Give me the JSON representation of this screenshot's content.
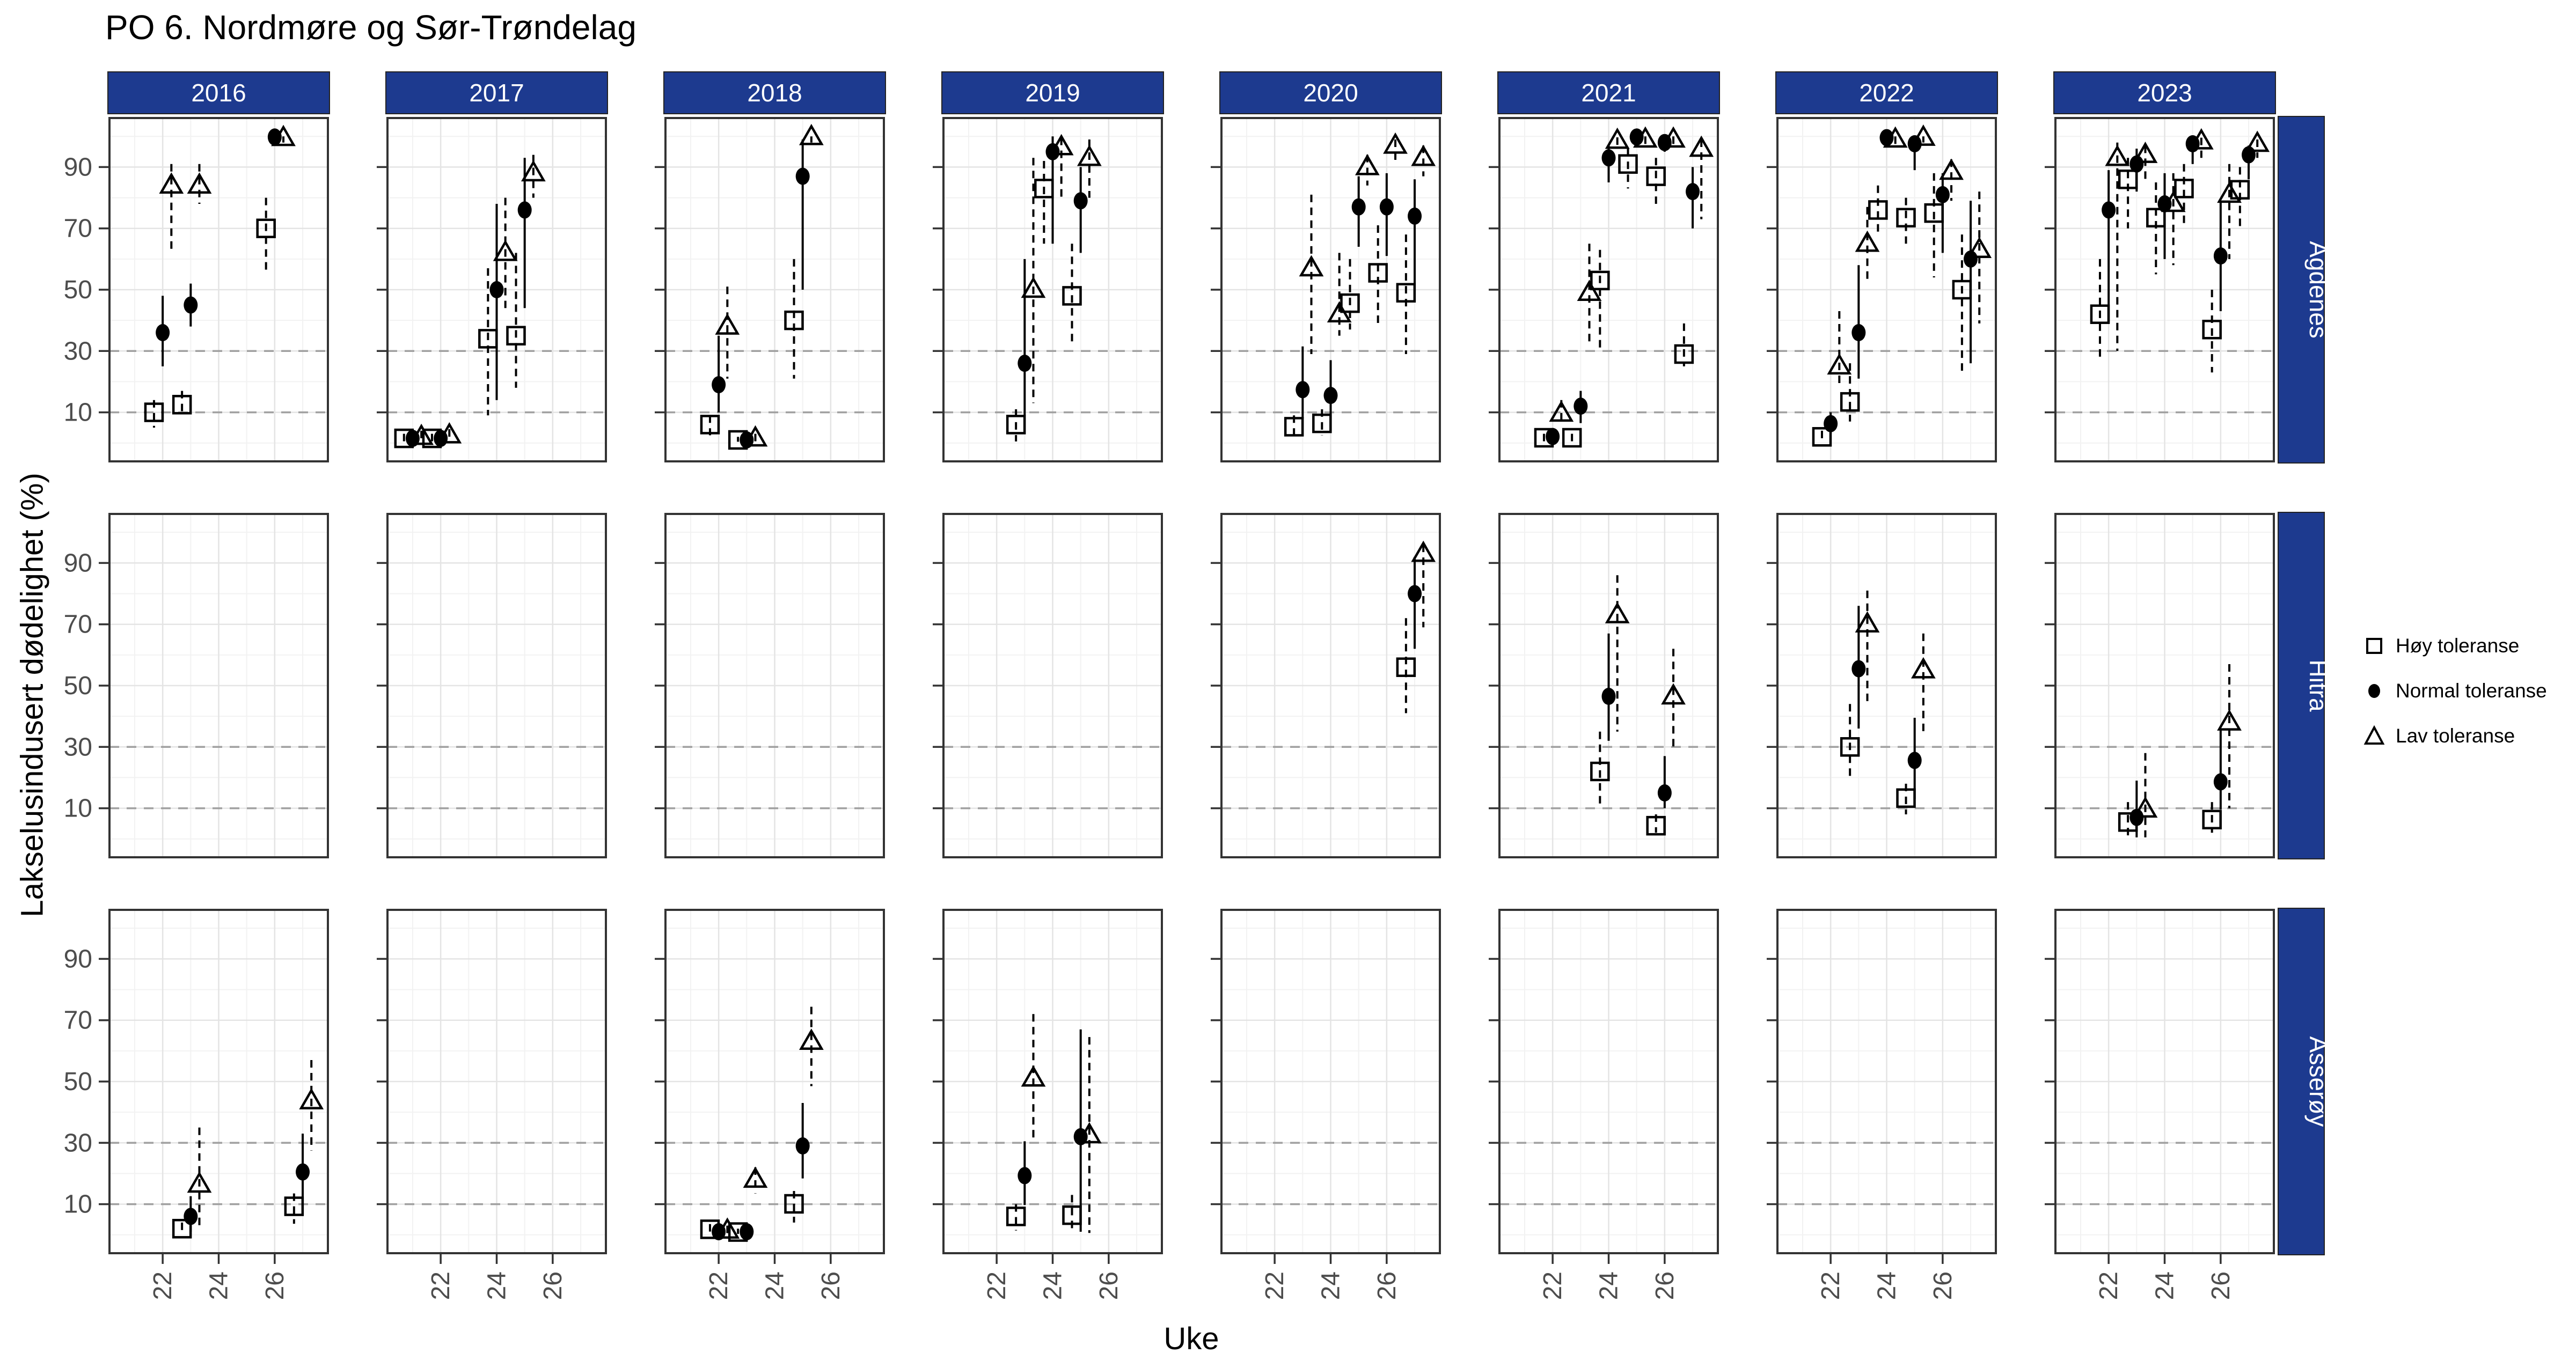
{
  "title": "PO 6. Nordmøre og Sør-Trøndelag",
  "axes": {
    "x_label": "Uke",
    "y_label": "Lakselusindusert dødelighet (%)",
    "x_ticks": [
      22,
      24,
      26
    ],
    "y_ticks": [
      10,
      30,
      50,
      70,
      90
    ],
    "x_domain": [
      20.1,
      27.9
    ],
    "y_domain": [
      -6,
      106
    ],
    "minor_x": [
      21,
      23,
      25,
      27
    ],
    "minor_y": [
      0,
      20,
      40,
      60,
      80,
      100
    ],
    "reference_lines": [
      10,
      30
    ]
  },
  "facets": {
    "years": [
      "2016",
      "2017",
      "2018",
      "2019",
      "2020",
      "2021",
      "2022",
      "2023"
    ],
    "areas": [
      "Agdenes",
      "Hitra",
      "Asserøy"
    ]
  },
  "legend": {
    "items": [
      {
        "label": "Høy toleranse",
        "marker": "square"
      },
      {
        "label": "Normal toleranse",
        "marker": "circle"
      },
      {
        "label": "Lav toleranse",
        "marker": "triangle"
      }
    ]
  },
  "colors": {
    "strip_bg": "#1d3a8f",
    "strip_text": "#ffffff",
    "axis_text": "#4d4d4d",
    "tick_mark": "#333333",
    "grid_major": "#e4e4e4",
    "grid_minor": "#f2f2f2",
    "ref_line": "#a0a0a0",
    "panel_border": "#333333",
    "panel_bg": "#ffffff",
    "mark": "#000000"
  },
  "chart_data": {
    "type": "scatter",
    "dodge": 0.31,
    "series": [
      {
        "key": "hoy",
        "label": "Høy toleranse",
        "marker": "square",
        "errorbar": "dashed"
      },
      {
        "key": "normal",
        "label": "Normal toleranse",
        "marker": "circle",
        "errorbar": "solid"
      },
      {
        "key": "lav",
        "label": "Lav toleranse",
        "marker": "triangle",
        "errorbar": "dashed"
      }
    ],
    "value_format": "[value, ci_low, ci_high] in % Lakselusindusert dødelighet, x = Uke (week)",
    "points": {
      "Agdenes": {
        "2016": [
          {
            "week": 22,
            "hoy": [
              10,
              5,
              14
            ],
            "normal": [
              36,
              25,
              48
            ],
            "lav": [
              84,
              62,
              91
            ]
          },
          {
            "week": 23,
            "hoy": [
              12.5,
              9,
              17
            ],
            "normal": [
              45,
              38,
              52
            ],
            "lav": [
              84,
              78,
              91
            ]
          },
          {
            "week": 26,
            "hoy": [
              70,
              56,
              80
            ],
            "normal": [
              99.8,
              99,
              100
            ],
            "lav": [
              99.5,
              98,
              100
            ]
          }
        ],
        "2017": [
          {
            "week": 21,
            "hoy": [
              1.5,
              0.5,
              3
            ],
            "normal": [
              1.5,
              0.5,
              3
            ],
            "lav": [
              2,
              1,
              4
            ]
          },
          {
            "week": 22,
            "hoy": [
              1.5,
              0.5,
              3
            ],
            "normal": [
              1.5,
              0.5,
              3
            ],
            "lav": [
              2.5,
              1,
              4.5
            ]
          },
          {
            "week": 24,
            "hoy": [
              34,
              9,
              57
            ],
            "normal": [
              50,
              14,
              78
            ],
            "lav": [
              62,
              44,
              80
            ]
          },
          {
            "week": 25,
            "hoy": [
              35,
              18,
              62
            ],
            "normal": [
              76,
              44,
              93
            ],
            "lav": [
              88,
              80,
              94
            ]
          }
        ],
        "2018": [
          {
            "week": 22,
            "hoy": [
              6,
              2.5,
              9
            ],
            "normal": [
              19,
              10,
              35
            ],
            "lav": [
              38,
              21,
              51
            ]
          },
          {
            "week": 23,
            "hoy": [
              1,
              0.4,
              2
            ],
            "normal": [
              1,
              0.4,
              2
            ],
            "lav": [
              1.5,
              0.5,
              3
            ]
          },
          {
            "week": 25,
            "hoy": [
              40,
              21,
              60
            ],
            "normal": [
              87,
              50,
              99
            ],
            "lav": [
              99.8,
              98,
              100
            ]
          }
        ],
        "2019": [
          {
            "week": 23,
            "hoy": [
              6,
              0.5,
              11
            ],
            "normal": [
              26,
              9,
              60
            ],
            "lav": [
              50,
              13,
              93
            ]
          },
          {
            "week": 24,
            "hoy": [
              83,
              65,
              92
            ],
            "normal": [
              95,
              65,
              100
            ],
            "lav": [
              96.5,
              79,
              99.6
            ]
          },
          {
            "week": 25,
            "hoy": [
              48,
              33,
              65
            ],
            "normal": [
              79,
              62,
              90
            ],
            "lav": [
              93,
              80,
              99
            ]
          }
        ],
        "2020": [
          {
            "week": 23,
            "hoy": [
              5.3,
              2,
              9
            ],
            "normal": [
              17.4,
              8,
              31.5
            ],
            "lav": [
              57,
              29,
              81
            ]
          },
          {
            "week": 24,
            "hoy": [
              6.4,
              2.5,
              11
            ],
            "normal": [
              15.5,
              7,
              27
            ],
            "lav": [
              42,
              35,
              62
            ]
          },
          {
            "week": 25,
            "hoy": [
              45.6,
              37,
              60
            ],
            "normal": [
              77,
              64,
              87
            ],
            "lav": [
              90,
              84,
              94
            ]
          },
          {
            "week": 26,
            "hoy": [
              55.5,
              39,
              71
            ],
            "normal": [
              77,
              61,
              88
            ],
            "lav": [
              97,
              92,
              99
            ]
          },
          {
            "week": 27,
            "hoy": [
              49,
              29,
              68
            ],
            "normal": [
              74,
              52,
              86
            ],
            "lav": [
              93,
              87,
              97
            ]
          }
        ],
        "2021": [
          {
            "week": 22,
            "hoy": [
              1.7,
              0.5,
              3
            ],
            "normal": [
              2.1,
              1,
              4
            ],
            "lav": [
              9.6,
              6,
              14
            ]
          },
          {
            "week": 23,
            "hoy": [
              1.7,
              0.5,
              3
            ],
            "normal": [
              12,
              6.5,
              17
            ],
            "lav": [
              49,
              32,
              65
            ]
          },
          {
            "week": 24,
            "hoy": [
              53,
              31,
              63
            ],
            "normal": [
              93,
              85,
              97
            ],
            "lav": [
              98.6,
              96,
              99.7
            ]
          },
          {
            "week": 25,
            "hoy": [
              91,
              83,
              96
            ],
            "normal": [
              99.8,
              99,
              100
            ],
            "lav": [
              99,
              97,
              100
            ]
          },
          {
            "week": 26,
            "hoy": [
              87,
              78,
              93
            ],
            "normal": [
              98,
              95,
              99.5
            ],
            "lav": [
              99,
              97,
              100
            ]
          },
          {
            "week": 27,
            "hoy": [
              29,
              25,
              39
            ],
            "normal": [
              82,
              70,
              90
            ],
            "lav": [
              96,
              73,
              99
            ]
          }
        ],
        "2022": [
          {
            "week": 22,
            "hoy": [
              2,
              0.5,
              4
            ],
            "normal": [
              6.3,
              3,
              10
            ],
            "lav": [
              25,
              19,
              43
            ]
          },
          {
            "week": 23,
            "hoy": [
              13.4,
              7,
              26
            ],
            "normal": [
              36,
              21,
              58
            ],
            "lav": [
              65,
              53,
              77
            ]
          },
          {
            "week": 24,
            "hoy": [
              76,
              68,
              84
            ],
            "normal": [
              99.6,
              97,
              100
            ],
            "lav": [
              99,
              97,
              100
            ]
          },
          {
            "week": 25,
            "hoy": [
              73.5,
              65,
              80
            ],
            "normal": [
              97.6,
              89,
              99.5
            ],
            "lav": [
              99.6,
              98,
              100
            ]
          },
          {
            "week": 26,
            "hoy": [
              75,
              54,
              88
            ],
            "normal": [
              81,
              62,
              88
            ],
            "lav": [
              88.5,
              79,
              92.5
            ]
          },
          {
            "week": 27,
            "hoy": [
              50,
              22,
              68
            ],
            "normal": [
              60,
              26,
              79
            ],
            "lav": [
              63,
              39,
              82
            ]
          }
        ],
        "2023": [
          {
            "week": 22,
            "hoy": [
              42,
              28,
              60
            ],
            "normal": [
              76,
              39,
              89
            ],
            "lav": [
              93,
              30,
              98
            ]
          },
          {
            "week": 23,
            "hoy": [
              86,
              70,
              93
            ],
            "normal": [
              91,
              82,
              96
            ],
            "lav": [
              94,
              85,
              97
            ]
          },
          {
            "week": 24,
            "hoy": [
              73.5,
              55,
              85
            ],
            "normal": [
              78,
              60,
              88
            ],
            "lav": [
              78,
              58,
              88
            ]
          },
          {
            "week": 25,
            "hoy": [
              83,
              70,
              91
            ],
            "normal": [
              97.6,
              91,
              99
            ],
            "lav": [
              98.4,
              93,
              99.6
            ]
          },
          {
            "week": 26,
            "hoy": [
              37,
              23,
              50
            ],
            "normal": [
              61,
              43,
              79
            ],
            "lav": [
              81,
              60,
              91
            ]
          },
          {
            "week": 27,
            "hoy": [
              82.6,
              70,
              90
            ],
            "normal": [
              94,
              86,
              97
            ],
            "lav": [
              97.6,
              93,
              99
            ]
          }
        ]
      },
      "Hitra": {
        "2016": [],
        "2017": [],
        "2018": [],
        "2019": [],
        "2020": [
          {
            "week": 27,
            "hoy": [
              56,
              41,
              72
            ],
            "normal": [
              80,
              62,
              92
            ],
            "lav": [
              93,
              69,
              96
            ]
          }
        ],
        "2021": [
          {
            "week": 24,
            "hoy": [
              22,
              10,
              35
            ],
            "normal": [
              46.5,
              32,
              67
            ],
            "lav": [
              73,
              35,
              86
            ]
          },
          {
            "week": 26,
            "hoy": [
              4.3,
              2,
              8
            ],
            "normal": [
              15,
              10,
              27
            ],
            "lav": [
              46.5,
              30,
              62
            ]
          }
        ],
        "2022": [
          {
            "week": 23,
            "hoy": [
              30,
              19,
              44
            ],
            "normal": [
              55.5,
              36,
              76
            ],
            "lav": [
              70,
              44,
              81
            ]
          },
          {
            "week": 25,
            "hoy": [
              13.3,
              8,
              18
            ],
            "normal": [
              25.6,
              13,
              39.5
            ],
            "lav": [
              55,
              35,
              67
            ]
          }
        ],
        "2023": [
          {
            "week": 23,
            "hoy": [
              5.5,
              0.5,
              12
            ],
            "normal": [
              7,
              0.5,
              19
            ],
            "lav": [
              9.6,
              0.5,
              28
            ]
          },
          {
            "week": 26,
            "hoy": [
              6.3,
              2,
              12
            ],
            "normal": [
              18.6,
              9.6,
              36
            ],
            "lav": [
              38,
              10,
              57
            ]
          }
        ]
      },
      "Asserøy": {
        "2016": [
          {
            "week": 23,
            "hoy": [
              2,
              0.5,
              4
            ],
            "normal": [
              6,
              1,
              12.6
            ],
            "lav": [
              16.4,
              1.5,
              35
            ]
          },
          {
            "week": 27,
            "hoy": [
              9.3,
              3.6,
              13.5
            ],
            "normal": [
              20.5,
              11,
              33
            ],
            "lav": [
              43.6,
              27.5,
              57
            ]
          }
        ],
        "2017": [],
        "2018": [
          {
            "week": 22,
            "hoy": [
              1.8,
              0.5,
              3.5
            ],
            "normal": [
              1,
              0.4,
              2
            ],
            "lav": [
              1.4,
              0.5,
              3
            ]
          },
          {
            "week": 23,
            "hoy": [
              0.9,
              0.3,
              2
            ],
            "normal": [
              1,
              0.4,
              2
            ],
            "lav": [
              18,
              13.5,
              22
            ]
          },
          {
            "week": 25,
            "hoy": [
              10.1,
              4,
              14.3
            ],
            "normal": [
              29,
              18.4,
              43
            ],
            "lav": [
              63,
              48.5,
              74.4
            ]
          }
        ],
        "2019": [
          {
            "week": 23,
            "hoy": [
              6,
              1.4,
              10
            ],
            "normal": [
              19.3,
              9.7,
              30.5
            ],
            "lav": [
              51,
              31,
              72
            ]
          },
          {
            "week": 25,
            "hoy": [
              6.4,
              2,
              13
            ],
            "normal": [
              32,
              1,
              67
            ],
            "lav": [
              32.5,
              0.6,
              64.5
            ]
          }
        ],
        "2020": [],
        "2021": [],
        "2022": [],
        "2023": []
      }
    }
  }
}
